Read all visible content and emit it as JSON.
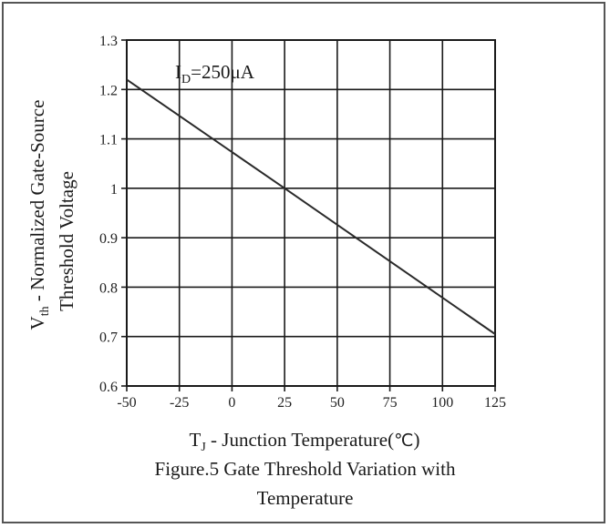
{
  "chart_data": {
    "type": "line",
    "title": "Figure.5 Gate Threshold Variation with Temperature",
    "title_lines": [
      "Figure.5 Gate Threshold Variation with",
      "Temperature"
    ],
    "xlabel": {
      "main": "T",
      "sub": "J",
      "rest": " - Junction Temperature(",
      "unit": "℃",
      "close": ")"
    },
    "ylabel": {
      "line1_main": "V",
      "line1_sub": "th",
      "line1_rest": " - Normalized Gate-Source",
      "line2": "Threshold Voltage"
    },
    "annotation": {
      "main": "I",
      "sub": "D",
      "rest": "=250μA"
    },
    "xlim": [
      -50,
      125
    ],
    "ylim": [
      0.6,
      1.3
    ],
    "xticks": [
      -50,
      -25,
      0,
      25,
      50,
      75,
      100,
      125
    ],
    "xtick_labels": [
      "-50",
      "-25",
      "0",
      "25",
      "50",
      "75",
      "100",
      "125"
    ],
    "yticks": [
      0.6,
      0.7,
      0.8,
      0.9,
      1.0,
      1.1,
      1.2,
      1.3
    ],
    "ytick_labels": [
      "0.6",
      "0.7",
      "0.8",
      "0.9",
      "1",
      "1.1",
      "1.2",
      "1.3"
    ],
    "grid": true,
    "series": [
      {
        "x": [
          -50,
          25,
          125
        ],
        "y": [
          1.22,
          1.0,
          0.705
        ],
        "color": "#2a2a2a"
      }
    ]
  }
}
